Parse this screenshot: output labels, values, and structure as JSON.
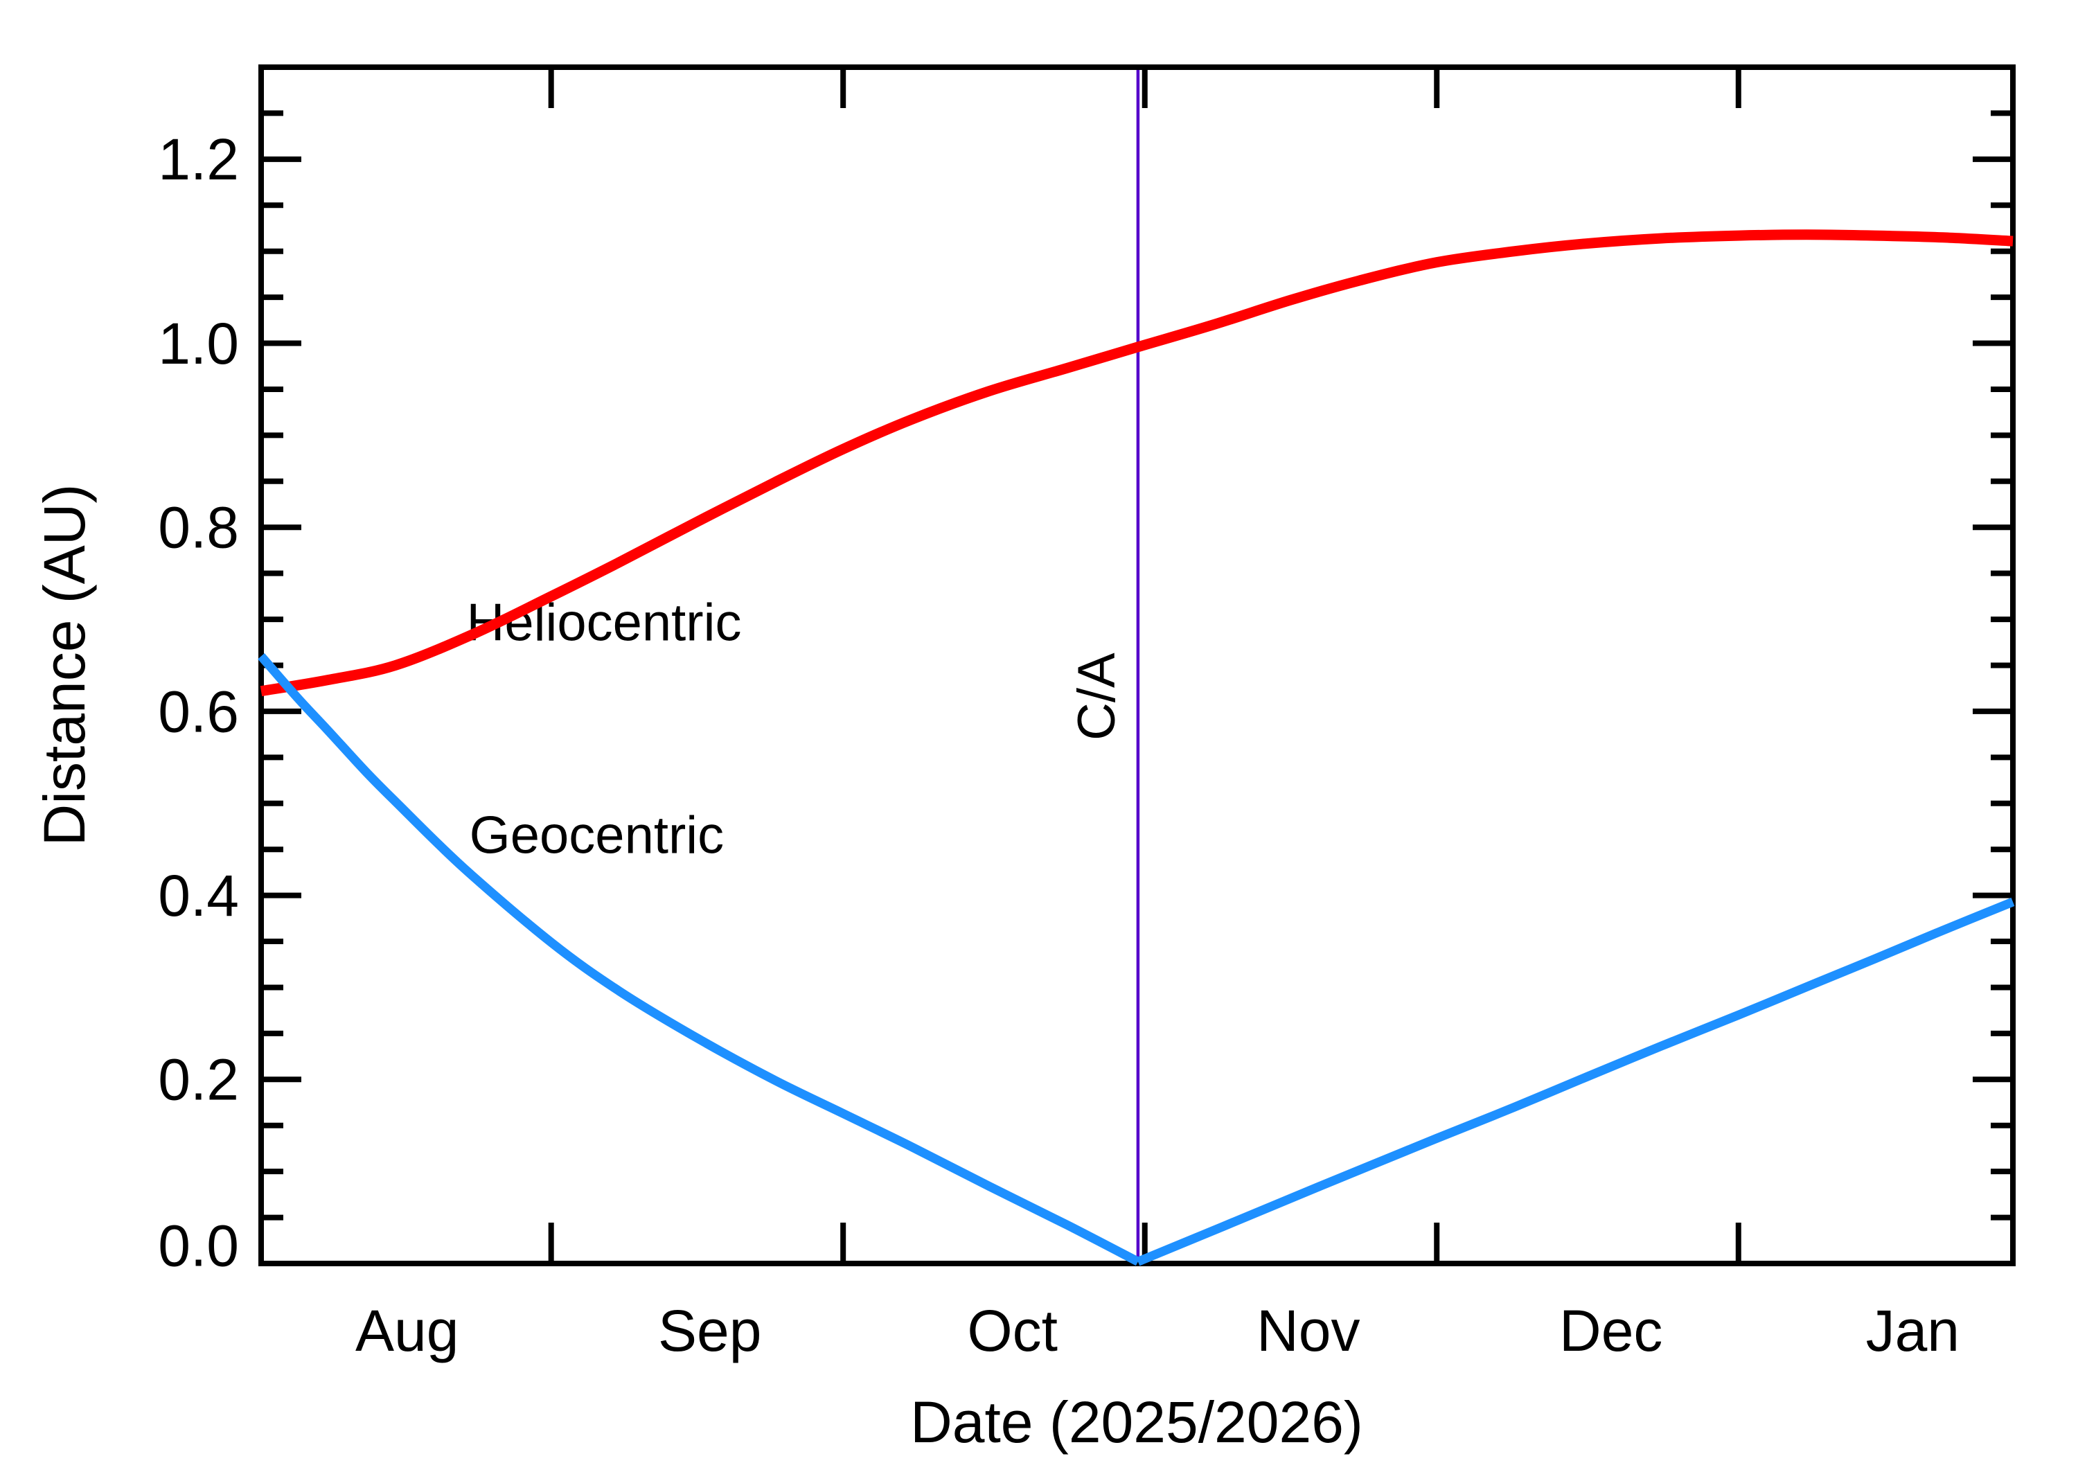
{
  "figure": {
    "background": "#FFFFFF"
  },
  "chart_data": {
    "type": "line",
    "title": "",
    "xlabel": "Date (2025/2026)",
    "ylabel": "Distance (AU)",
    "grid": false,
    "legend_position": "inline-labels",
    "x_axis": {
      "unit": "days since 2025-08-01",
      "range_days": [
        1.2,
        181.2
      ],
      "month_boundary_tick_days": [
        31,
        61,
        92,
        122,
        153
      ],
      "month_labels": [
        {
          "label": "Aug",
          "day": 16.2
        },
        {
          "label": "Sep",
          "day": 47.3
        },
        {
          "label": "Oct",
          "day": 78.4
        },
        {
          "label": "Nov",
          "day": 108.8
        },
        {
          "label": "Dec",
          "day": 139.9
        },
        {
          "label": "Jan",
          "day": 170.9
        }
      ]
    },
    "y_axis": {
      "range_au": [
        0.0,
        1.3
      ],
      "major_ticks": [
        {
          "value": 0.0,
          "label": "0.0"
        },
        {
          "value": 0.2,
          "label": "0.2"
        },
        {
          "value": 0.4,
          "label": "0.4"
        },
        {
          "value": 0.6,
          "label": "0.6"
        },
        {
          "value": 0.8,
          "label": "0.8"
        },
        {
          "value": 1.0,
          "label": "1.0"
        },
        {
          "value": 1.2,
          "label": "1.2"
        }
      ],
      "minor_tick_step": 0.05
    },
    "series": [
      {
        "name": "Heliocentric",
        "color": "#FF0000",
        "label_pos": {
          "day": 22.3,
          "au": 0.677
        },
        "segments": [
          [
            [
              1.2,
              0.622
            ],
            [
              8,
              0.634
            ],
            [
              15,
              0.65
            ],
            [
              23,
              0.684
            ],
            [
              31,
              0.725
            ],
            [
              38,
              0.762
            ],
            [
              46,
              0.806
            ],
            [
              54,
              0.849
            ],
            [
              61,
              0.885
            ],
            [
              68,
              0.917
            ],
            [
              76,
              0.948
            ],
            [
              84,
              0.973
            ],
            [
              91.3,
              0.996
            ],
            [
              99,
              1.02
            ],
            [
              107,
              1.047
            ],
            [
              114,
              1.068
            ],
            [
              122,
              1.088
            ],
            [
              130,
              1.1
            ],
            [
              137,
              1.108
            ],
            [
              145,
              1.114
            ],
            [
              153,
              1.117
            ],
            [
              160,
              1.118
            ],
            [
              167,
              1.117
            ],
            [
              174,
              1.115
            ],
            [
              181.2,
              1.111
            ]
          ]
        ]
      },
      {
        "name": "Geocentric",
        "color": "#1E90FF",
        "label_pos": {
          "day": 22.6,
          "au": 0.446
        },
        "segments": [
          [
            [
              1.2,
              0.66
            ],
            [
              5,
              0.614
            ],
            [
              8,
              0.58
            ],
            [
              12,
              0.534
            ],
            [
              15,
              0.502
            ],
            [
              22,
              0.43
            ],
            [
              31,
              0.349
            ],
            [
              38,
              0.296
            ],
            [
              46,
              0.245
            ],
            [
              54,
              0.199
            ],
            [
              61,
              0.163
            ],
            [
              68,
              0.127
            ],
            [
              76,
              0.084
            ],
            [
              84,
              0.042
            ],
            [
              91.3,
              0.002
            ]
          ],
          [
            [
              91.3,
              0.002
            ],
            [
              100,
              0.04
            ],
            [
              110,
              0.084
            ],
            [
              122,
              0.136
            ],
            [
              130,
              0.17
            ],
            [
              137,
              0.201
            ],
            [
              145,
              0.236
            ],
            [
              153,
              0.27
            ],
            [
              161,
              0.305
            ],
            [
              167,
              0.331
            ],
            [
              174,
              0.362
            ],
            [
              181.2,
              0.393
            ]
          ]
        ]
      }
    ],
    "annotation": {
      "label": "C/A",
      "day": 91.3,
      "color": "#5505CB",
      "label_pos": {
        "day": 88.8,
        "au": 0.616
      }
    }
  }
}
